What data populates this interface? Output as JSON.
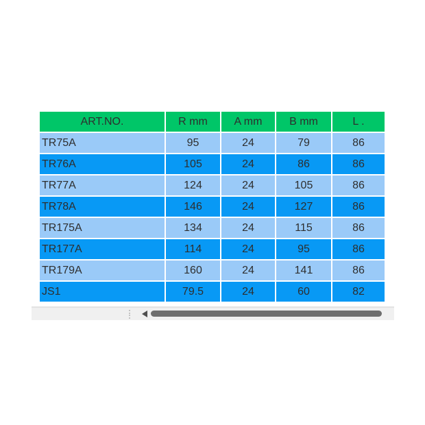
{
  "table": {
    "columns": [
      "ART.NO.",
      "R mm",
      "A mm",
      "B mm",
      "L ."
    ],
    "rows": [
      {
        "art_no": "TR75A",
        "r": "95",
        "a": "24",
        "b": "79",
        "l": "86"
      },
      {
        "art_no": "TR76A",
        "r": "105",
        "a": "24",
        "b": "86",
        "l": "86"
      },
      {
        "art_no": "TR77A",
        "r": "124",
        "a": "24",
        "b": "105",
        "l": "86"
      },
      {
        "art_no": "TR78A",
        "r": "146",
        "a": "24",
        "b": "127",
        "l": "86"
      },
      {
        "art_no": "TR175A",
        "r": "134",
        "a": "24",
        "b": "115",
        "l": "86"
      },
      {
        "art_no": "TR177A",
        "r": "114",
        "a": "24",
        "b": "95",
        "l": "86"
      },
      {
        "art_no": "TR179A",
        "r": "160",
        "a": "24",
        "b": "141",
        "l": "86"
      },
      {
        "art_no": "JS1",
        "r": "79.5",
        "a": "24",
        "b": "60",
        "l": "82"
      }
    ]
  },
  "colors": {
    "header_green": "#00C668",
    "row_light_blue": "#9ACAF8",
    "row_dark_blue": "#0899F5",
    "text": "#2E2E2E",
    "scrollbar_track": "#F0F0F0",
    "scrollbar_thumb": "#6E6E6E"
  },
  "scrollbar": {
    "drag_handle_icon": "vertical-dots-drag-handle",
    "left_arrow_icon": "triangle-left",
    "thumb": "horizontal-thumb"
  }
}
